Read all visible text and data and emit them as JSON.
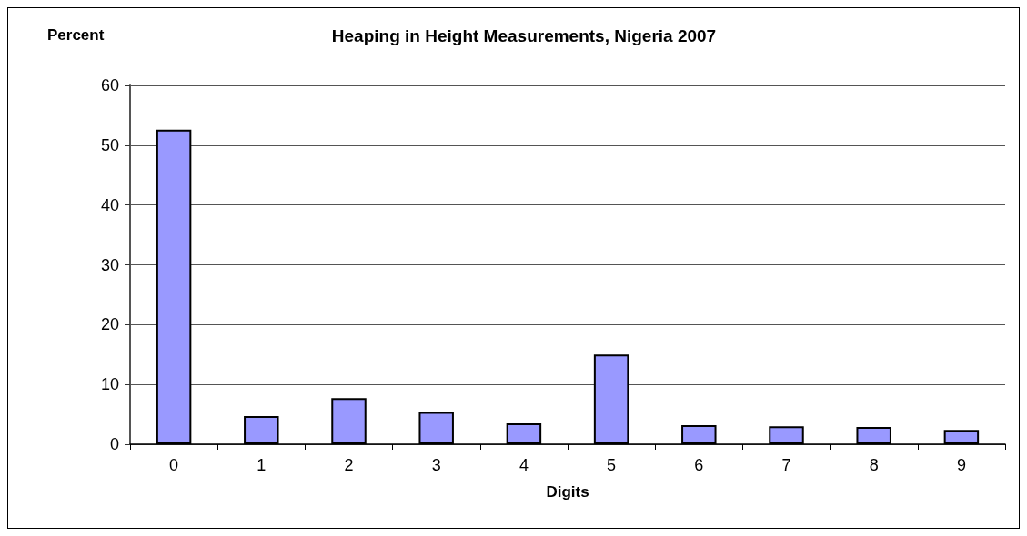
{
  "chart_data": {
    "type": "bar",
    "title": "Heaping in Height Measurements, Nigeria 2007",
    "ylabel": "Percent",
    "xlabel": "Digits",
    "categories": [
      "0",
      "1",
      "2",
      "3",
      "4",
      "5",
      "6",
      "7",
      "8",
      "9"
    ],
    "values": [
      52.6,
      4.7,
      7.7,
      5.4,
      3.5,
      15.0,
      3.2,
      3.0,
      2.9,
      2.4
    ],
    "color": "#9999ff",
    "ylim": [
      0,
      60
    ],
    "yticks": [
      0,
      10,
      20,
      30,
      40,
      50,
      60
    ],
    "grid": "y"
  }
}
